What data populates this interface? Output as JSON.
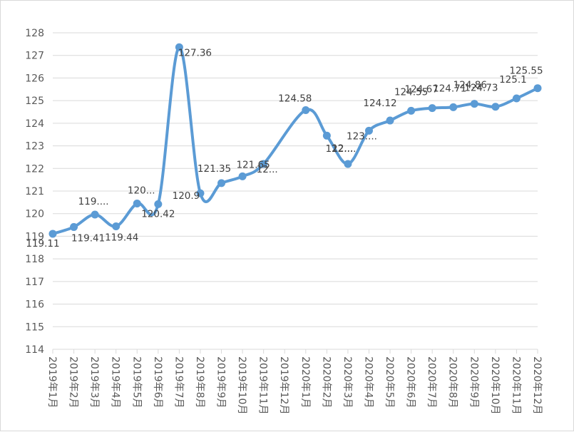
{
  "chart_data": {
    "type": "line",
    "title": "",
    "xlabel": "",
    "ylabel": "",
    "ylim": [
      114,
      128
    ],
    "y_ticks": [
      114,
      115,
      116,
      117,
      118,
      119,
      120,
      121,
      122,
      123,
      124,
      125,
      126,
      127,
      128
    ],
    "grid": "horizontal",
    "smooth": true,
    "categories": [
      "2019年1月",
      "2019年2月",
      "2019年3月",
      "2019年4月",
      "2019年5月",
      "2019年6月",
      "2019年7月",
      "2019年8月",
      "2019年9月",
      "2019年10月",
      "2019年11月",
      "2019年12月",
      "2020年1月",
      "2020年2月",
      "2020年3月",
      "2020年4月",
      "2020年5月",
      "2020年6月",
      "2020年7月",
      "2020年8月",
      "2020年9月",
      "2020年10月",
      "2020年11月",
      "2020年12月"
    ],
    "series": [
      {
        "color": "#5b9bd5",
        "points": [
          {
            "x": "2019年1月",
            "value": 119.11,
            "label": "119.11"
          },
          {
            "x": "2019年2月",
            "value": 119.41,
            "label": "119.41"
          },
          {
            "x": "2019年3月",
            "value": 119.96,
            "label": "119...."
          },
          {
            "x": "2019年4月",
            "value": 119.44,
            "label": "119.44"
          },
          {
            "x": "2019年5月",
            "value": 120.45,
            "label": "120..."
          },
          {
            "x": "2019年6月",
            "value": 120.42,
            "label": "120.42"
          },
          {
            "x": "2019年7月",
            "value": 127.36,
            "label": "127.36"
          },
          {
            "x": "2019年8月",
            "value": 120.9,
            "label": "120.9"
          },
          {
            "x": "2019年9月",
            "value": 121.35,
            "label": "121.35"
          },
          {
            "x": "2019年10月",
            "value": 121.65,
            "label": "121.65"
          },
          {
            "x": "2019年11月",
            "value": 122.2,
            "label": "12..."
          },
          {
            "x": "2019年12月",
            "value": null,
            "label": ""
          },
          {
            "x": "2020年1月",
            "value": 124.58,
            "label": "124.58"
          },
          {
            "x": "2020年2月",
            "value": 123.45,
            "label": "12..."
          },
          {
            "x": "2020年3月",
            "value": 122.2,
            "label": "122...."
          },
          {
            "x": "2020年4月",
            "value": 123.67,
            "label": "123...."
          },
          {
            "x": "2020年5月",
            "value": 124.12,
            "label": "124.12"
          },
          {
            "x": "2020年6月",
            "value": 124.55,
            "label": "124.55"
          },
          {
            "x": "2020年7月",
            "value": 124.67,
            "label": "124.67"
          },
          {
            "x": "2020年8月",
            "value": 124.71,
            "label": "124.71"
          },
          {
            "x": "2020年9月",
            "value": 124.86,
            "label": "124.86"
          },
          {
            "x": "2020年10月",
            "value": 124.73,
            "label": "124.73"
          },
          {
            "x": "2020年11月",
            "value": 125.1,
            "label": "125.1"
          },
          {
            "x": "2020年12月",
            "value": 125.55,
            "label": "125.55"
          }
        ]
      }
    ]
  }
}
